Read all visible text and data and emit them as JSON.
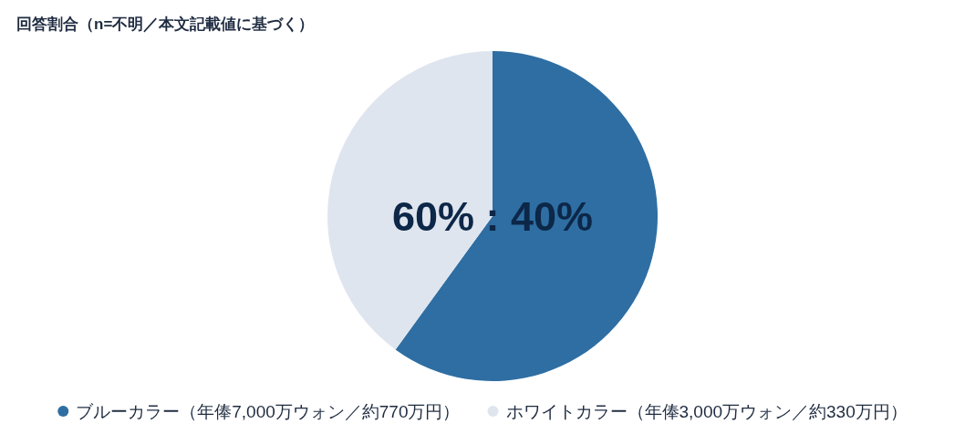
{
  "chart_data": {
    "type": "pie",
    "title": "回答割合（n=不明／本文記載値に基づく）",
    "categories": [
      "ブルーカラー（年俸7,000万ウォン／約770万円）",
      "ホワイトカラー（年俸3,000万ウォン／約330万円）"
    ],
    "values": [
      60,
      40
    ],
    "colors": [
      "#2e6ea3",
      "#dfe5ee"
    ],
    "legend": "bottom",
    "annotations": [
      "60% : 40%"
    ]
  }
}
